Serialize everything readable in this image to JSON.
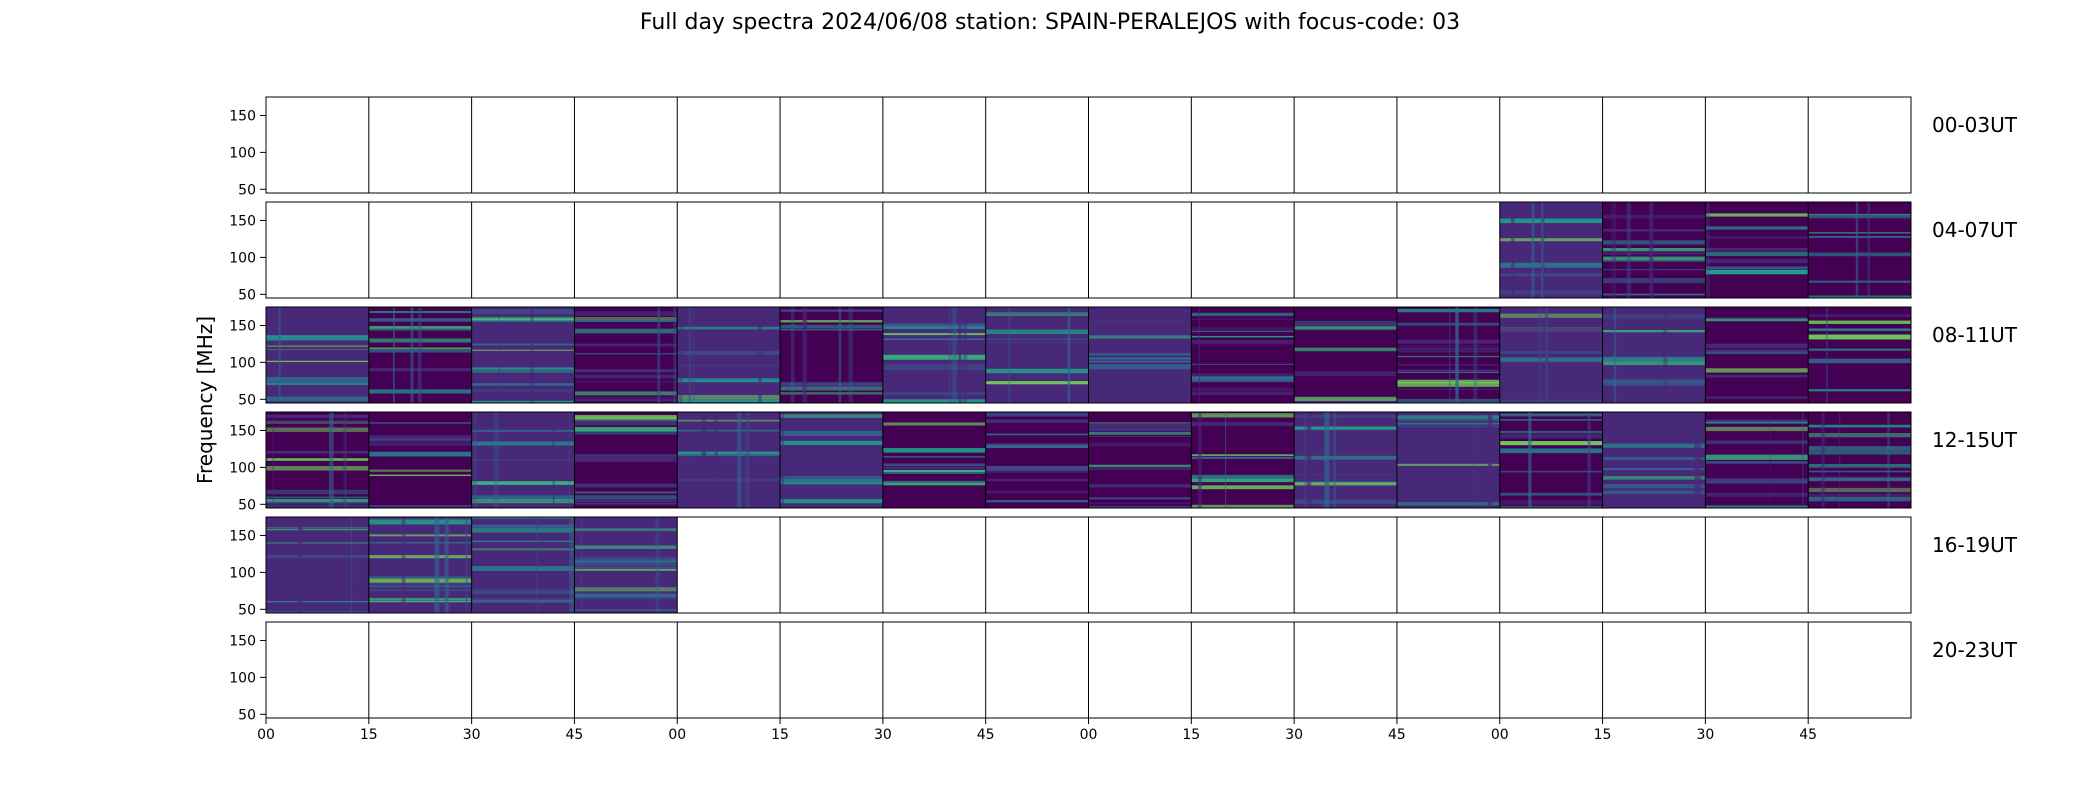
{
  "title": "Full day spectra 2024/06/08 station: SPAIN-PERALEJOS with focus-code: 03",
  "chart_data": {
    "type": "heatmap",
    "title": "Full day spectra 2024/06/08 station: SPAIN-PERALEJOS with focus-code: 03",
    "ylabel": "Frequency [MHz]",
    "xlabel": "",
    "yticks": [
      "50",
      "100",
      "150"
    ],
    "ylim": [
      45,
      175
    ],
    "xticks": [
      "00",
      "15",
      "30",
      "45",
      "00",
      "15",
      "30",
      "45",
      "00",
      "15",
      "30",
      "45",
      "00",
      "15",
      "30",
      "45"
    ],
    "segments_per_row": 16,
    "segment_minutes": 15,
    "colormap": [
      "#440154",
      "#482878",
      "#3e4989",
      "#31688e",
      "#26828e",
      "#1f9e89",
      "#35b779",
      "#6ece58"
    ],
    "rows": [
      {
        "label": "00-03UT",
        "data_segments": []
      },
      {
        "label": "04-07UT",
        "data_segments": [
          12,
          13,
          14,
          15
        ]
      },
      {
        "label": "08-11UT",
        "data_segments": [
          0,
          1,
          2,
          3,
          4,
          5,
          6,
          7,
          8,
          9,
          10,
          11,
          12,
          13,
          14,
          15
        ]
      },
      {
        "label": "12-15UT",
        "data_segments": [
          0,
          1,
          2,
          3,
          4,
          5,
          6,
          7,
          8,
          9,
          10,
          11,
          12,
          13,
          14,
          15
        ]
      },
      {
        "label": "16-19UT",
        "data_segments": [
          0,
          1,
          2,
          3
        ]
      },
      {
        "label": "20-23UT",
        "data_segments": []
      }
    ]
  }
}
